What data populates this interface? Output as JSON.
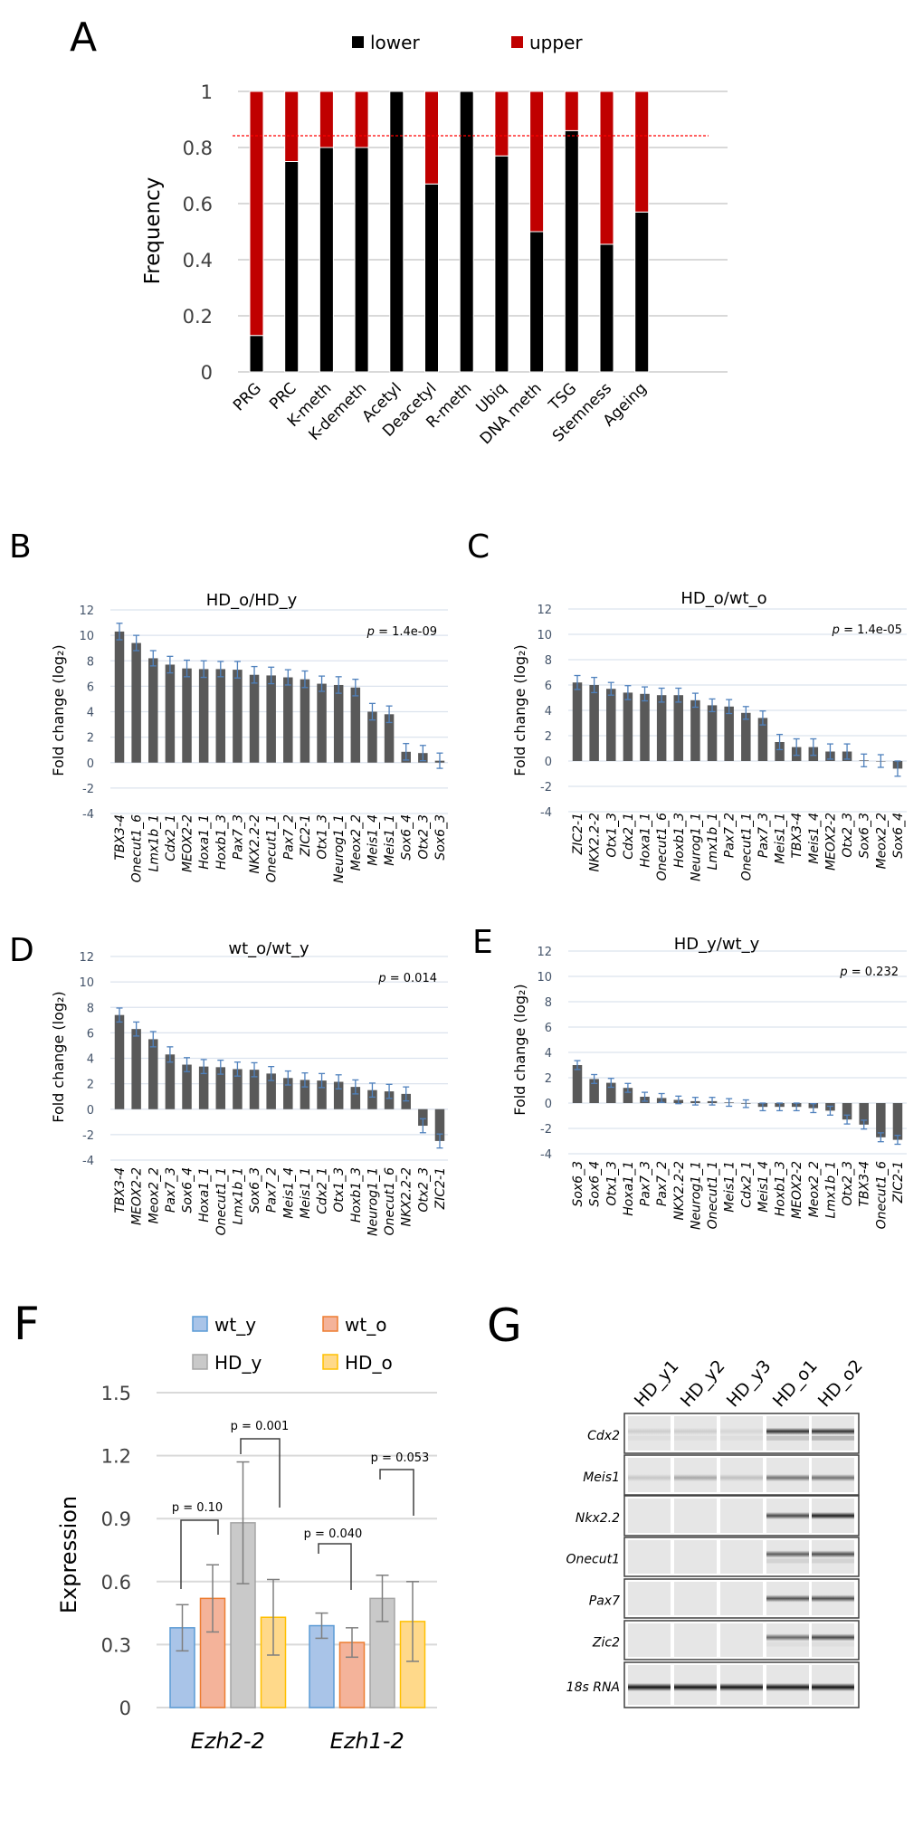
{
  "figure": {
    "panel_letters": [
      "A",
      "B",
      "C",
      "D",
      "E",
      "F",
      "G"
    ]
  },
  "chart_data": [
    {
      "id": "A",
      "type": "bar",
      "stacked": true,
      "title": "",
      "ylabel": "Frequency",
      "xlabel": "",
      "ylim": [
        0,
        1
      ],
      "yticks": [
        "0",
        "0.2",
        "0.4",
        "0.6",
        "0.8",
        "1"
      ],
      "ytick_values": [
        0,
        0.2,
        0.4,
        0.6,
        0.8,
        1
      ],
      "grid": true,
      "legend_position": "top",
      "categories": [
        "PRG",
        "PRC",
        "K-meth",
        "K-demeth",
        "Acetyl",
        "Deacetyl",
        "R-meth",
        "Ubiq",
        "DNA meth",
        "TSG",
        "Stemness",
        "Ageing"
      ],
      "series": [
        {
          "name": "lower",
          "color": "#000000",
          "values": [
            0.13,
            0.75,
            0.8,
            0.8,
            1.0,
            0.67,
            1.0,
            0.77,
            0.5,
            0.86,
            0.455,
            0.57
          ]
        },
        {
          "name": "upper",
          "color": "#c00000",
          "values": [
            0.87,
            0.25,
            0.2,
            0.2,
            0.0,
            0.33,
            0.0,
            0.23,
            0.5,
            0.14,
            0.545,
            0.43
          ]
        }
      ],
      "reference_line": {
        "value": 0.842,
        "style": "dashed",
        "color": "#ff0000"
      }
    },
    {
      "id": "B",
      "type": "bar",
      "title": "HD_o/HD_y",
      "ylabel": "Fold change (log₂)",
      "ylim": [
        -4,
        12
      ],
      "yticks": [
        "-4",
        "-2",
        "0",
        "2",
        "4",
        "6",
        "8",
        "10",
        "12"
      ],
      "ytick_values": [
        -4,
        -2,
        0,
        2,
        4,
        6,
        8,
        10,
        12
      ],
      "grid": true,
      "annotation": {
        "p_label": "p",
        "p_text": " = 1.4e-09"
      },
      "categories": [
        "TBX3-4",
        "Onecut1_6",
        "Lmx1b_1",
        "Cdx2_1",
        "MEOX2-2",
        "Hoxa1_1",
        "Hoxb1_3",
        "Pax7_3",
        "NKX2.2-2",
        "Onecut1_1",
        "Pax7_2",
        "ZIC2-1",
        "Otx1_3",
        "Neurog1_1",
        "Meox2_2",
        "Meis1_4",
        "Meis1_1",
        "Sox6_4",
        "Otx2_3",
        "Sox6_3"
      ],
      "values": [
        10.3,
        9.4,
        8.2,
        7.7,
        7.4,
        7.35,
        7.35,
        7.3,
        6.9,
        6.85,
        6.7,
        6.55,
        6.2,
        6.1,
        5.9,
        4.0,
        3.8,
        0.85,
        0.75,
        0.15
      ],
      "errors": [
        0.65,
        0.6,
        0.6,
        0.65,
        0.65,
        0.65,
        0.6,
        0.65,
        0.65,
        0.65,
        0.6,
        0.65,
        0.6,
        0.65,
        0.65,
        0.65,
        0.65,
        0.65,
        0.6,
        0.6
      ]
    },
    {
      "id": "C",
      "type": "bar",
      "title": "HD_o/wt_o",
      "ylabel": "Fold change (log₂)",
      "ylim": [
        -4,
        12
      ],
      "yticks": [
        "-4",
        "-2",
        "0",
        "2",
        "4",
        "6",
        "8",
        "10",
        "12"
      ],
      "ytick_values": [
        -4,
        -2,
        0,
        2,
        4,
        6,
        8,
        10,
        12
      ],
      "grid": true,
      "annotation": {
        "p_label": "p",
        "p_text": " = 1.4e-05"
      },
      "categories": [
        "ZIC2-1",
        "NKX2.2-2",
        "Otx1_3",
        "Cdx2_1",
        "Hoxa1_1",
        "Onecut1_6",
        "Hoxb1_3",
        "Neurog1_1",
        "Lmx1b_1",
        "Pax7_2",
        "Onecut1_1",
        "Pax7_3",
        "Meis1_1",
        "TBX3-4",
        "Meis1_4",
        "MEOX2-2",
        "Otx2_3",
        "Sox6_3",
        "Meox2_2",
        "Sox6_4"
      ],
      "values": [
        6.2,
        6.0,
        5.7,
        5.4,
        5.3,
        5.2,
        5.2,
        4.8,
        4.4,
        4.3,
        3.8,
        3.4,
        1.5,
        1.1,
        1.1,
        0.75,
        0.75,
        0.05,
        0.0,
        -0.6
      ],
      "errors": [
        0.55,
        0.6,
        0.5,
        0.55,
        0.55,
        0.55,
        0.55,
        0.55,
        0.5,
        0.55,
        0.5,
        0.55,
        0.6,
        0.65,
        0.65,
        0.6,
        0.6,
        0.5,
        0.5,
        0.6
      ]
    },
    {
      "id": "D",
      "type": "bar",
      "title": "wt_o/wt_y",
      "ylabel": "Fold change (log₂)",
      "ylim": [
        -4,
        12
      ],
      "yticks": [
        "-4",
        "-2",
        "0",
        "2",
        "4",
        "6",
        "8",
        "10",
        "12"
      ],
      "ytick_values": [
        -4,
        -2,
        0,
        2,
        4,
        6,
        8,
        10,
        12
      ],
      "grid": true,
      "annotation": {
        "p_label": "p",
        "p_text": " = 0.014"
      },
      "categories": [
        "TBX3-4",
        "MEOX2-2",
        "Meox2_2",
        "Pax7_3",
        "Sox6_4",
        "Hoxa1_1",
        "Onecut1_1",
        "Lmx1b_1",
        "Sox6_3",
        "Pax7_2",
        "Meis1_4",
        "Meis1_1",
        "Cdx2_1",
        "Otx1_3",
        "Hoxb1_3",
        "Neurog1_1",
        "Onecut1_6",
        "NKX2.2-2",
        "Otx2_3",
        "ZIC2-1"
      ],
      "values": [
        7.4,
        6.3,
        5.5,
        4.3,
        3.5,
        3.35,
        3.3,
        3.15,
        3.1,
        2.8,
        2.45,
        2.3,
        2.25,
        2.15,
        1.75,
        1.5,
        1.4,
        1.2,
        -1.3,
        -2.5
      ],
      "errors": [
        0.55,
        0.55,
        0.6,
        0.6,
        0.55,
        0.55,
        0.55,
        0.55,
        0.55,
        0.55,
        0.55,
        0.55,
        0.55,
        0.55,
        0.55,
        0.55,
        0.55,
        0.55,
        0.55,
        0.55
      ]
    },
    {
      "id": "E",
      "type": "bar",
      "title": "HD_y/wt_y",
      "ylabel": "Fold change (log₂)",
      "ylim": [
        -4,
        12
      ],
      "yticks": [
        "-4",
        "-2",
        "0",
        "2",
        "4",
        "6",
        "8",
        "10",
        "12"
      ],
      "ytick_values": [
        -4,
        -2,
        0,
        2,
        4,
        6,
        8,
        10,
        12
      ],
      "grid": true,
      "annotation": {
        "p_label": "p",
        "p_text": " = 0.232"
      },
      "categories": [
        "Sox6_3",
        "Sox6_4",
        "Otx1_3",
        "Hoxa1_1",
        "Pax7_3",
        "Pax7_2",
        "NKX2.2-2",
        "Neurog1_1",
        "Onecut1_1",
        "Meis1_1",
        "Cdx2_1",
        "Meis1_4",
        "Hoxb1_3",
        "MEOX2-2",
        "Meox2_2",
        "Lmx1b_1",
        "Otx2_3",
        "TBX3-4",
        "Onecut1_6",
        "ZIC2-1"
      ],
      "values": [
        3.0,
        1.9,
        1.6,
        1.2,
        0.5,
        0.4,
        0.25,
        0.15,
        0.15,
        0.05,
        -0.05,
        -0.3,
        -0.3,
        -0.3,
        -0.4,
        -0.6,
        -1.3,
        -1.7,
        -2.7,
        -2.9
      ],
      "errors": [
        0.35,
        0.35,
        0.35,
        0.35,
        0.35,
        0.35,
        0.3,
        0.3,
        0.3,
        0.3,
        0.3,
        0.3,
        0.3,
        0.3,
        0.35,
        0.35,
        0.35,
        0.35,
        0.35,
        0.35
      ]
    },
    {
      "id": "F",
      "type": "bar",
      "title": "",
      "ylabel": "Expression",
      "ylim": [
        0,
        1.5
      ],
      "yticks": [
        "0",
        "0.3",
        "0.6",
        "0.9",
        "1.2",
        "1.5"
      ],
      "ytick_values": [
        0,
        0.3,
        0.6,
        0.9,
        1.2,
        1.5
      ],
      "grid": true,
      "legend_position": "top",
      "categories": [
        "Ezh2-2",
        "Ezh1-2"
      ],
      "series": [
        {
          "name": "wt_y",
          "fill": "#a9c4e8",
          "stroke": "#5b9bd5",
          "values": [
            0.38,
            0.39
          ],
          "errors": [
            0.11,
            0.06
          ]
        },
        {
          "name": "wt_o",
          "fill": "#f4b39a",
          "stroke": "#ed7d31",
          "values": [
            0.52,
            0.31
          ],
          "errors": [
            0.16,
            0.07
          ]
        },
        {
          "name": "HD_y",
          "fill": "#c9c9c9",
          "stroke": "#a5a5a5",
          "values": [
            0.88,
            0.52
          ],
          "errors": [
            0.29,
            0.11
          ]
        },
        {
          "name": "HD_o",
          "fill": "#ffd98a",
          "stroke": "#ffc000",
          "values": [
            0.43,
            0.41
          ],
          "errors": [
            0.18,
            0.19
          ]
        }
      ],
      "annotations": [
        {
          "text": "p = 0.10",
          "category": "Ezh2-2",
          "between": [
            "wt_y",
            "wt_o"
          ]
        },
        {
          "text": "p = 0.001",
          "category": "Ezh2-2",
          "between": [
            "HD_y",
            "HD_o"
          ]
        },
        {
          "text": "p = 0.040",
          "category": "Ezh1-2",
          "between": [
            "wt_y",
            "wt_o"
          ]
        },
        {
          "text": "p = 0.053",
          "category": "Ezh1-2",
          "between": [
            "HD_y",
            "HD_o"
          ]
        }
      ]
    },
    {
      "id": "G",
      "type": "heatmap",
      "title": "",
      "description": "capillary electrophoresis gel bands",
      "lanes": [
        "HD_y1",
        "HD_y2",
        "HD_y3",
        "HD_o1",
        "HD_o2"
      ],
      "rows": [
        {
          "gene": "Cdx2",
          "band_intensity": [
            0.12,
            0.12,
            0.08,
            0.85,
            0.85
          ],
          "secondary_band_intensity": [
            0.05,
            0.05,
            0.05,
            0.2,
            0.3
          ]
        },
        {
          "gene": "Meis1",
          "band_intensity": [
            0.15,
            0.3,
            0.18,
            0.55,
            0.55
          ],
          "secondary_band_intensity": [
            0,
            0,
            0,
            0,
            0
          ]
        },
        {
          "gene": "Nkx2.2",
          "band_intensity": [
            0,
            0,
            0,
            0.75,
            0.95
          ],
          "secondary_band_intensity": [
            0,
            0,
            0,
            0,
            0
          ]
        },
        {
          "gene": "Onecut1",
          "band_intensity": [
            0,
            0,
            0,
            0.65,
            0.72
          ],
          "secondary_band_intensity": [
            0,
            0,
            0,
            0.12,
            0.12
          ]
        },
        {
          "gene": "Pax7",
          "band_intensity": [
            0,
            0,
            0,
            0.7,
            0.72
          ],
          "secondary_band_intensity": [
            0,
            0,
            0,
            0,
            0
          ]
        },
        {
          "gene": "Zic2",
          "band_intensity": [
            0,
            0,
            0,
            0.6,
            0.75
          ],
          "secondary_band_intensity": [
            0,
            0,
            0,
            0.05,
            0.05
          ]
        },
        {
          "gene": "18s RNA",
          "band_intensity": [
            1,
            1,
            1,
            1,
            1
          ],
          "secondary_band_intensity": [
            0,
            0,
            0,
            0,
            0
          ]
        }
      ]
    }
  ]
}
